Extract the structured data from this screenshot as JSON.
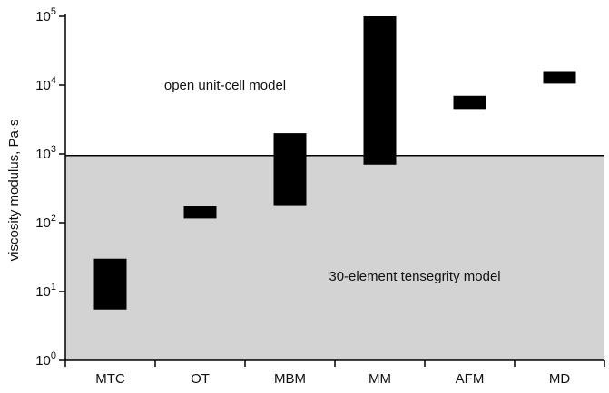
{
  "chart_data": {
    "type": "bar",
    "subtype": "floating-range",
    "ylabel": "viscosity modulus, Pa·s",
    "xlabel": "",
    "title": "",
    "y_scale": "log",
    "ylim": [
      1,
      100000
    ],
    "y_ticks": [
      {
        "value": 1,
        "base": "10",
        "exp": "0"
      },
      {
        "value": 10,
        "base": "10",
        "exp": "1"
      },
      {
        "value": 100,
        "base": "10",
        "exp": "2"
      },
      {
        "value": 1000,
        "base": "10",
        "exp": "3"
      },
      {
        "value": 10000,
        "base": "10",
        "exp": "4"
      },
      {
        "value": 100000,
        "base": "10",
        "exp": "5"
      }
    ],
    "categories": [
      "MTC",
      "OT",
      "MBM",
      "MM",
      "AFM",
      "MD"
    ],
    "ranges": [
      {
        "category": "MTC",
        "low": 5.5,
        "high": 30
      },
      {
        "category": "OT",
        "low": 115,
        "high": 175
      },
      {
        "category": "MBM",
        "low": 180,
        "high": 2000
      },
      {
        "category": "MM",
        "low": 700,
        "high": 100000
      },
      {
        "category": "AFM",
        "low": 4500,
        "high": 7000
      },
      {
        "category": "MD",
        "low": 10500,
        "high": 16000
      }
    ],
    "threshold": 950,
    "regions": {
      "upper_label": "open unit-cell model",
      "lower_label": "30-element tensegrity model"
    },
    "colors": {
      "bar": "#000000",
      "lower_region": "#d3d3d3",
      "upper_region": "#ffffff"
    },
    "grid": false
  }
}
